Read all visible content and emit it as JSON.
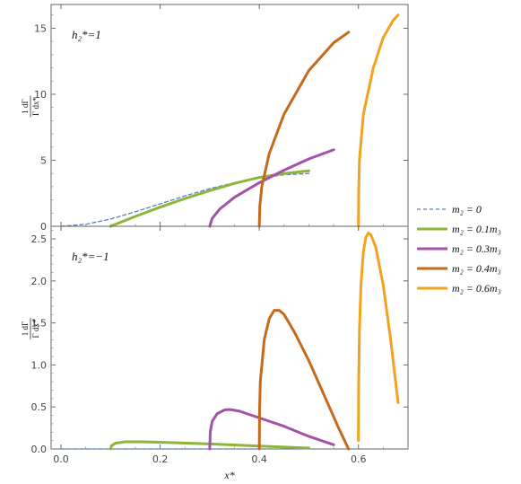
{
  "chart_data": [
    {
      "type": "line",
      "annotation": "h₂*=1",
      "ylabel_top": "1  dΓ",
      "ylabel_bottom": "Γ  dx*",
      "xlabel": "",
      "xlim": [
        -0.02,
        0.7
      ],
      "ylim": [
        0,
        16.8
      ],
      "xticks": [
        "0.0",
        "0.2",
        "0.4",
        "0.6"
      ],
      "yticks": [
        0,
        5,
        10,
        15
      ],
      "ytick_labels": [
        "0",
        "5",
        "10",
        "15"
      ],
      "series": [
        {
          "name": "m₂ = 0",
          "color": "#5b7fb8",
          "dashed": true,
          "x": [
            0.0,
            0.05,
            0.1,
            0.15,
            0.2,
            0.25,
            0.3,
            0.35,
            0.4,
            0.45,
            0.5
          ],
          "y": [
            0.0,
            0.15,
            0.55,
            1.1,
            1.7,
            2.3,
            2.85,
            3.3,
            3.65,
            3.9,
            4.0
          ]
        },
        {
          "name": "m₂ = 0.1m₃",
          "color": "#8fb43a",
          "x": [
            0.1,
            0.15,
            0.2,
            0.25,
            0.3,
            0.35,
            0.4,
            0.45,
            0.5
          ],
          "y": [
            0.0,
            0.75,
            1.45,
            2.1,
            2.7,
            3.25,
            3.7,
            4.0,
            4.2
          ]
        },
        {
          "name": "m₂ = 0.3m₃",
          "color": "#a352a8",
          "x": [
            0.3,
            0.305,
            0.32,
            0.35,
            0.4,
            0.45,
            0.5,
            0.55
          ],
          "y": [
            0.0,
            0.6,
            1.3,
            2.2,
            3.3,
            4.25,
            5.1,
            5.8
          ]
        },
        {
          "name": "m₂ = 0.4m₃",
          "color": "#c56a1c",
          "x": [
            0.4,
            0.401,
            0.405,
            0.42,
            0.45,
            0.5,
            0.55,
            0.58
          ],
          "y": [
            0.0,
            1.5,
            3.0,
            5.5,
            8.5,
            11.8,
            13.9,
            14.7
          ]
        },
        {
          "name": "m₂ = 0.6m₃",
          "color": "#f2a21e",
          "x": [
            0.6,
            0.6005,
            0.602,
            0.61,
            0.63,
            0.65,
            0.67,
            0.68
          ],
          "y": [
            0.0,
            2.5,
            5.0,
            8.5,
            12.0,
            14.3,
            15.6,
            16.0
          ]
        }
      ]
    },
    {
      "type": "line",
      "annotation": "h₂*=−1",
      "ylabel_top": "1  dΓ",
      "ylabel_bottom": "Γ  dx*",
      "xlabel": "x*",
      "xlim": [
        -0.02,
        0.7
      ],
      "ylim": [
        0,
        2.65
      ],
      "xticks": [
        "0.0",
        "0.2",
        "0.4",
        "0.6"
      ],
      "yticks": [
        0,
        0.5,
        1.0,
        1.5,
        2.0,
        2.5
      ],
      "ytick_labels": [
        "0.0",
        "0.5",
        "1.0",
        "1.5",
        "2.0",
        "2.5"
      ],
      "series": [
        {
          "name": "m₂ = 0",
          "color": "#5b7fb8",
          "dashed": true,
          "x": [
            0.0,
            0.1,
            0.2,
            0.3,
            0.4,
            0.5
          ],
          "y": [
            0.0,
            0.0,
            0.0,
            0.0,
            0.0,
            0.0
          ]
        },
        {
          "name": "m₂ = 0.1m₃",
          "color": "#8fb43a",
          "x": [
            0.1,
            0.102,
            0.11,
            0.13,
            0.16,
            0.2,
            0.3,
            0.4,
            0.5
          ],
          "y": [
            0.0,
            0.04,
            0.07,
            0.085,
            0.085,
            0.08,
            0.06,
            0.035,
            0.01
          ]
        },
        {
          "name": "m₂ = 0.3m₃",
          "color": "#a352a8",
          "x": [
            0.3,
            0.301,
            0.305,
            0.315,
            0.33,
            0.34,
            0.36,
            0.4,
            0.45,
            0.5,
            0.55
          ],
          "y": [
            0.0,
            0.2,
            0.33,
            0.42,
            0.465,
            0.47,
            0.45,
            0.37,
            0.27,
            0.15,
            0.05
          ]
        },
        {
          "name": "m₂ = 0.4m₃",
          "color": "#c56a1c",
          "x": [
            0.4,
            0.4005,
            0.402,
            0.41,
            0.42,
            0.43,
            0.44,
            0.45,
            0.47,
            0.5,
            0.53,
            0.56,
            0.58
          ],
          "y": [
            0.0,
            0.45,
            0.8,
            1.3,
            1.55,
            1.65,
            1.65,
            1.6,
            1.4,
            1.05,
            0.65,
            0.25,
            0.0
          ]
        },
        {
          "name": "m₂ = 0.6m₃",
          "color": "#f2a21e",
          "x": [
            0.6,
            0.6003,
            0.602,
            0.605,
            0.61,
            0.615,
            0.62,
            0.625,
            0.635,
            0.65,
            0.665,
            0.68
          ],
          "y": [
            0.1,
            0.7,
            1.4,
            1.95,
            2.35,
            2.52,
            2.57,
            2.55,
            2.4,
            1.95,
            1.3,
            0.55
          ]
        }
      ]
    }
  ],
  "legend": {
    "entries": [
      {
        "label": "m₂ = 0",
        "color": "#5b7fb8",
        "dashed": true
      },
      {
        "label": "m₂ = 0.1m₃",
        "color": "#8fb43a",
        "dashed": false
      },
      {
        "label": "m₂ = 0.3m₃",
        "color": "#a352a8",
        "dashed": false
      },
      {
        "label": "m₂ = 0.4m₃",
        "color": "#c56a1c",
        "dashed": false
      },
      {
        "label": "m₂ = 0.6m₃",
        "color": "#f2a21e",
        "dashed": false
      }
    ],
    "placement": "right"
  }
}
